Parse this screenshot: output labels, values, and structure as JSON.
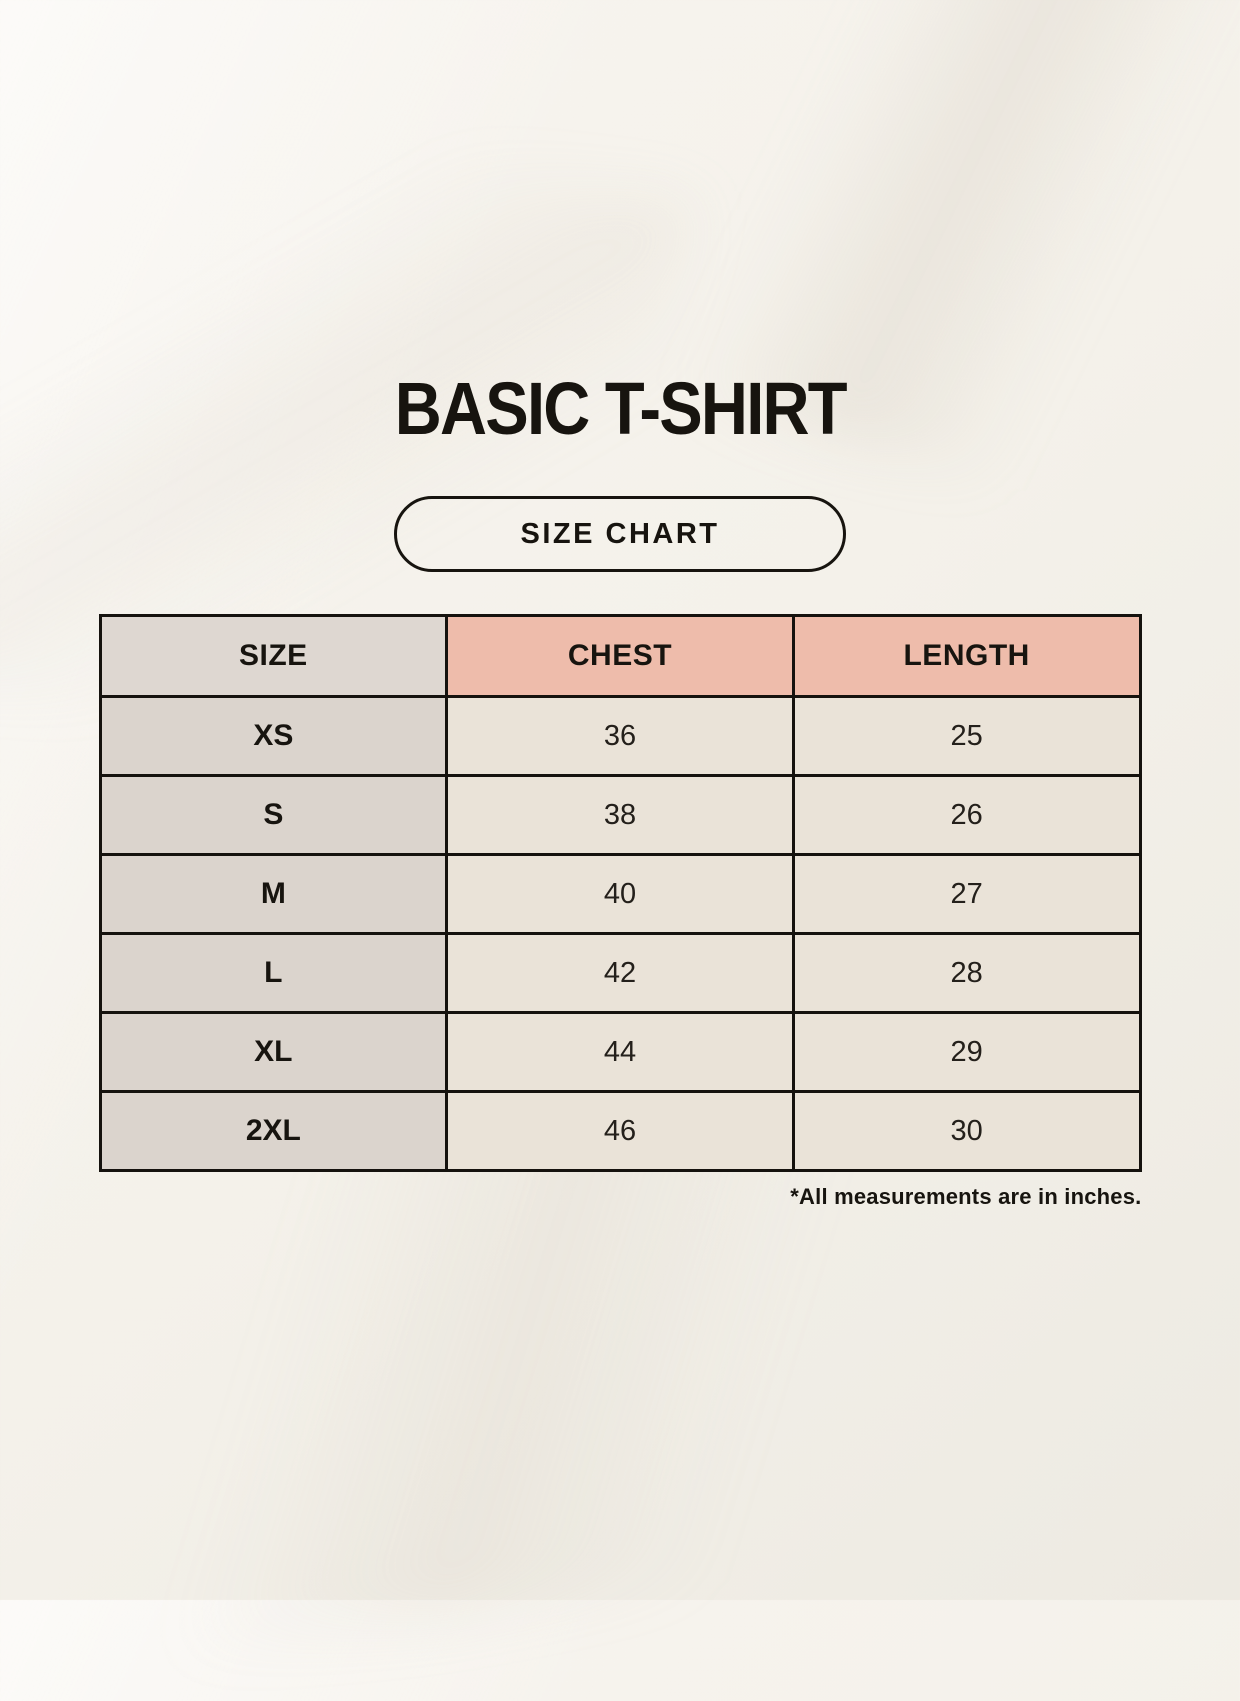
{
  "title": "BASIC T-SHIRT",
  "badge": {
    "label": "SIZE CHART"
  },
  "table": {
    "headers": [
      "SIZE",
      "CHEST",
      "LENGTH"
    ],
    "rows": [
      {
        "size": "XS",
        "chest": "36",
        "length": "25"
      },
      {
        "size": "S",
        "chest": "38",
        "length": "26"
      },
      {
        "size": "M",
        "chest": "40",
        "length": "27"
      },
      {
        "size": "L",
        "chest": "42",
        "length": "28"
      },
      {
        "size": "XL",
        "chest": "44",
        "length": "29"
      },
      {
        "size": "2XL",
        "chest": "46",
        "length": "30"
      }
    ]
  },
  "footnote": "*All measurements are in inches.",
  "colors": {
    "background": "#f4f1ea",
    "header_accent": "#eebcab",
    "size_column": "#ded7d1",
    "data_cell": "#eae3d8",
    "table_border": "#15120e",
    "text": "#17140f"
  }
}
